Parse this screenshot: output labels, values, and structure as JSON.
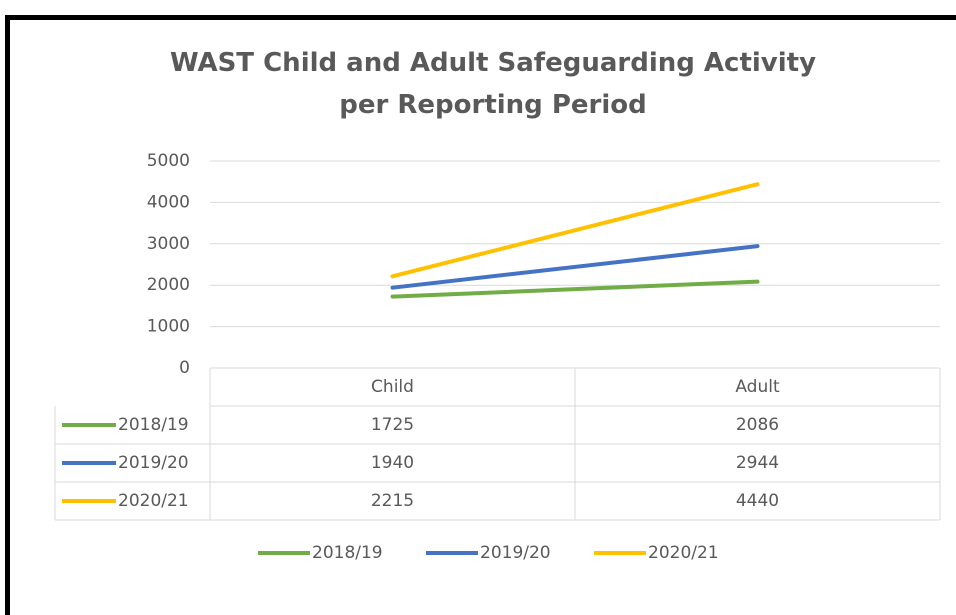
{
  "chart_data": {
    "type": "line",
    "title": "WAST Child and Adult Safeguarding Activity per Reporting Period",
    "categories": [
      "Child",
      "Adult"
    ],
    "series": [
      {
        "name": "2018/19",
        "color": "#70ad47",
        "values": [
          1725,
          2086
        ]
      },
      {
        "name": "2019/20",
        "color": "#4472c4",
        "values": [
          1940,
          2944
        ]
      },
      {
        "name": "2020/21",
        "color": "#ffc000",
        "values": [
          2215,
          4440
        ]
      }
    ],
    "ylim": [
      0,
      5000
    ],
    "yticks": [
      0,
      1000,
      2000,
      3000,
      4000,
      5000
    ],
    "grid": true,
    "data_table": true,
    "legend": "bottom"
  }
}
